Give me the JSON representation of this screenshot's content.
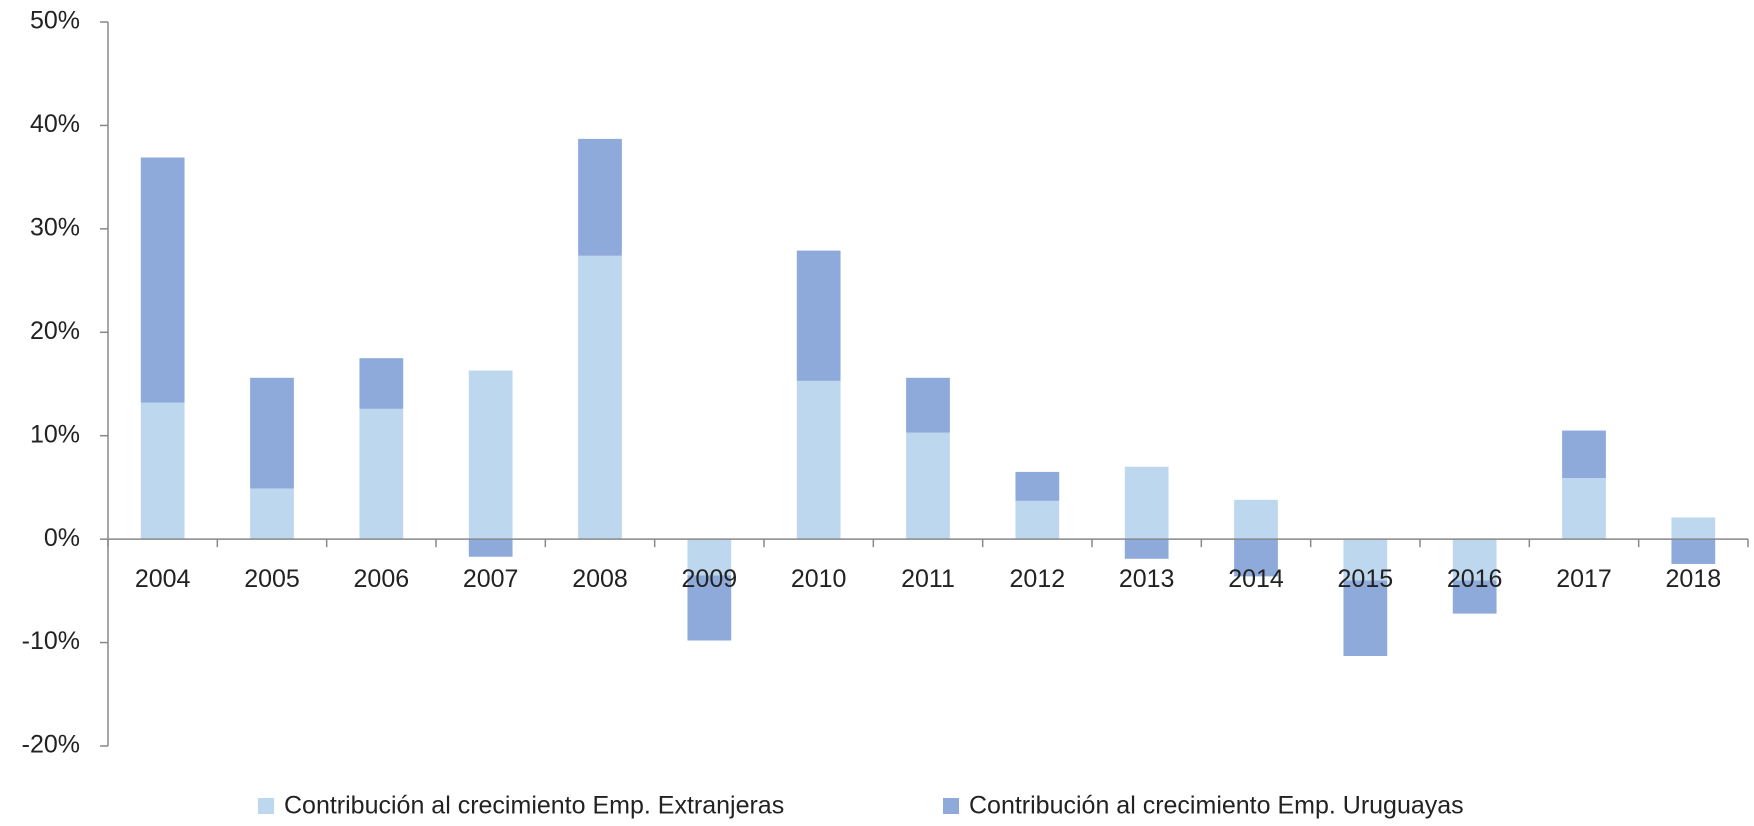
{
  "chart_data": {
    "type": "stacked_bar",
    "categories": [
      "2004",
      "2005",
      "2006",
      "2007",
      "2008",
      "2009",
      "2010",
      "2011",
      "2012",
      "2013",
      "2014",
      "2015",
      "2016",
      "2017",
      "2018"
    ],
    "series": [
      {
        "name": "Contribución al crecimiento Emp. Extranjeras",
        "color": "#bdd7ee",
        "values": [
          13.2,
          4.9,
          12.6,
          16.3,
          27.4,
          -3.5,
          15.3,
          10.3,
          3.7,
          7.0,
          3.8,
          -4.0,
          -4.0,
          5.9,
          2.1
        ]
      },
      {
        "name": "Contribución al crecimiento Emp. Uruguayas",
        "color": "#8eaadb",
        "values": [
          23.7,
          10.7,
          4.9,
          -1.7,
          11.3,
          -6.3,
          12.6,
          5.3,
          2.8,
          -1.9,
          -3.6,
          -7.3,
          -3.2,
          4.6,
          -2.4
        ]
      }
    ],
    "ylim": [
      -20,
      50
    ],
    "yticks": [
      {
        "value": -20,
        "label": "-20%"
      },
      {
        "value": -10,
        "label": "-10%"
      },
      {
        "value": 0,
        "label": "0%"
      },
      {
        "value": 10,
        "label": "10%"
      },
      {
        "value": 20,
        "label": "20%"
      },
      {
        "value": 30,
        "label": "30%"
      },
      {
        "value": 40,
        "label": "40%"
      },
      {
        "value": 50,
        "label": "50%"
      }
    ],
    "legend": "bottom"
  }
}
